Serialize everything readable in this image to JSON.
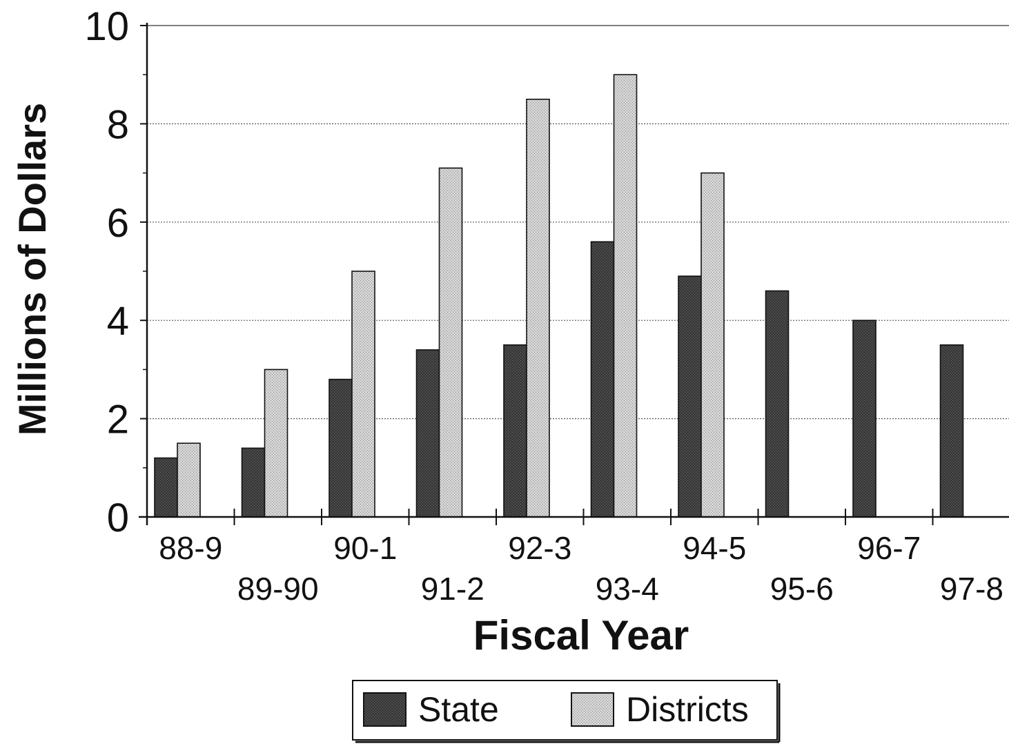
{
  "chart_data": {
    "type": "bar",
    "title": "",
    "xlabel": "Fiscal Year",
    "ylabel": "Millions of Dollars",
    "categories": [
      "88-9",
      "89-90",
      "90-1",
      "91-2",
      "92-3",
      "93-4",
      "94-5",
      "95-6",
      "96-7",
      "97-8"
    ],
    "series": [
      {
        "name": "State",
        "color": "#4a4a4a",
        "values": [
          1.2,
          1.4,
          2.8,
          3.4,
          3.5,
          5.6,
          4.9,
          4.6,
          4.0,
          3.5
        ]
      },
      {
        "name": "Districts",
        "color": "#c4c4c4",
        "values": [
          1.5,
          3.0,
          5.0,
          7.1,
          8.5,
          9.0,
          7.0,
          null,
          null,
          null
        ]
      }
    ],
    "ylim": [
      0,
      10
    ],
    "yticks": [
      "0",
      "2",
      "4",
      "6",
      "8",
      "10"
    ],
    "grid": true,
    "legend_position": "bottom-center"
  }
}
